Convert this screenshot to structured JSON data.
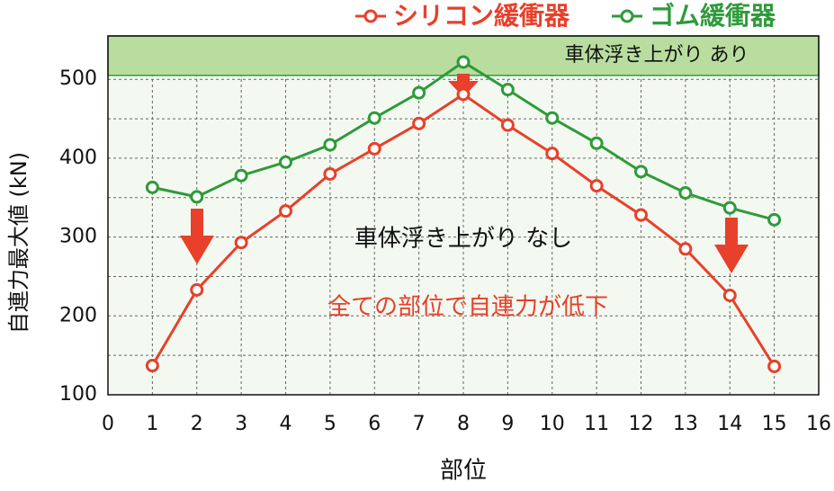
{
  "chart_data": {
    "type": "line",
    "x_label": "部位",
    "y_label": "自連力最大値 (kN)",
    "x": [
      1,
      2,
      3,
      4,
      5,
      6,
      7,
      8,
      9,
      10,
      11,
      12,
      13,
      14,
      15
    ],
    "series": [
      {
        "name": "シリコン緩衝器",
        "color": "#e8402a",
        "values": [
          137,
          233,
          293,
          333,
          380,
          412,
          444,
          481,
          442,
          406,
          365,
          328,
          285,
          226,
          136
        ]
      },
      {
        "name": "ゴム緩衝器",
        "color": "#2e9b3a",
        "values": [
          363,
          351,
          378,
          395,
          417,
          451,
          483,
          522,
          487,
          451,
          419,
          383,
          356,
          337,
          322
        ]
      }
    ],
    "xlim": [
      0,
      16
    ],
    "xticks": [
      0,
      1,
      2,
      3,
      4,
      5,
      6,
      7,
      8,
      9,
      10,
      11,
      12,
      13,
      14,
      15,
      16
    ],
    "ylim": [
      100,
      555
    ],
    "yticks": [
      100,
      200,
      300,
      400,
      500
    ],
    "y_minor_grid": [
      150,
      250,
      350,
      450
    ],
    "grid": true,
    "highlight_range": [
      505,
      555
    ],
    "annotations": [
      "車体浮き上がり あり",
      "車体浮き上がり なし",
      "全ての部位で自連力が低下"
    ]
  }
}
